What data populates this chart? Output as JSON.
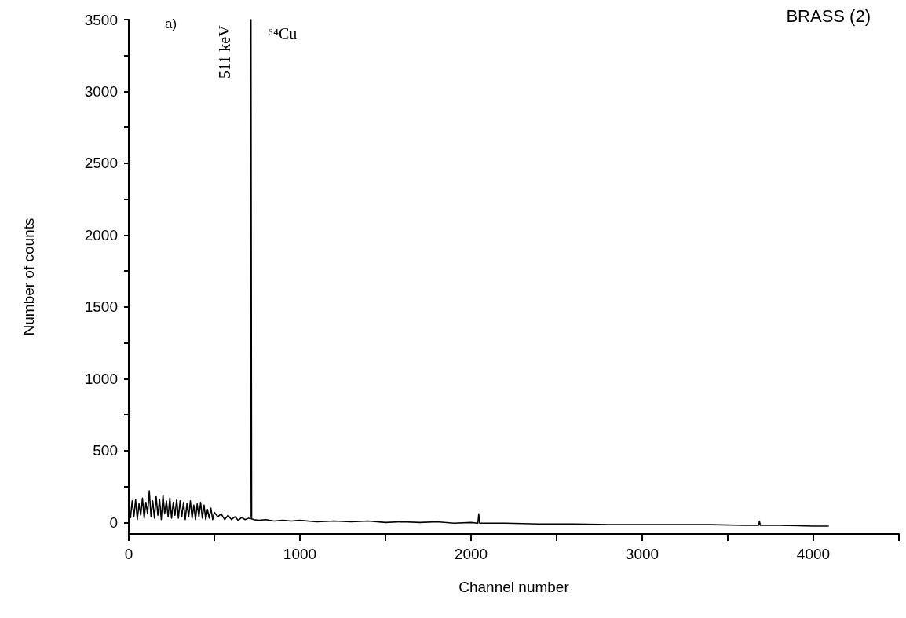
{
  "chart_data": {
    "type": "line",
    "title": "BRASS (2)",
    "xlabel": "Channel number",
    "ylabel": "Number of counts",
    "annotations": [
      "a)",
      {
        "text": "511 keV",
        "x": 714,
        "y": 3100
      },
      {
        "text": "⁶⁴Cu",
        "x": 714,
        "y": 3400
      }
    ],
    "x": [
      10,
      20,
      30,
      40,
      50,
      60,
      70,
      80,
      90,
      100,
      110,
      120,
      130,
      140,
      150,
      160,
      170,
      180,
      190,
      200,
      210,
      220,
      230,
      240,
      250,
      260,
      270,
      280,
      290,
      300,
      310,
      320,
      330,
      340,
      350,
      360,
      370,
      380,
      390,
      400,
      410,
      420,
      430,
      440,
      450,
      460,
      470,
      480,
      490,
      500,
      520,
      540,
      560,
      580,
      600,
      620,
      640,
      660,
      680,
      700,
      710,
      714,
      718,
      730,
      760,
      800,
      850,
      900,
      950,
      1000,
      1100,
      1200,
      1300,
      1400,
      1500,
      1600,
      1700,
      1800,
      1900,
      2000,
      2040,
      2045,
      2050,
      2200,
      2400,
      2600,
      2800,
      3000,
      3200,
      3400,
      3600,
      3680,
      3685,
      3690,
      3800,
      4000,
      4090
    ],
    "series": [
      {
        "color": "#000000",
        "values": [
          30,
          150,
          40,
          160,
          20,
          130,
          50,
          170,
          30,
          140,
          60,
          220,
          40,
          150,
          30,
          180,
          50,
          160,
          20,
          190,
          60,
          150,
          40,
          170,
          30,
          140,
          50,
          160,
          30,
          150,
          40,
          140,
          20,
          130,
          40,
          150,
          30,
          120,
          20,
          130,
          40,
          140,
          30,
          120,
          20,
          90,
          30,
          100,
          20,
          70,
          40,
          60,
          20,
          50,
          20,
          40,
          15,
          35,
          20,
          30,
          25,
          3500,
          25,
          20,
          15,
          20,
          10,
          15,
          10,
          15,
          5,
          10,
          5,
          10,
          0,
          5,
          0,
          5,
          -5,
          0,
          -5,
          60,
          -5,
          -5,
          -10,
          -10,
          -15,
          -15,
          -15,
          -15,
          -20,
          -20,
          10,
          -20,
          -20,
          -25,
          -25
        ]
      }
    ],
    "xlim": [
      0,
      4500
    ],
    "xticks": [
      0,
      {
        "value": 500,
        "label": null
      },
      1000,
      {
        "value": 1500,
        "label": null
      },
      2000,
      {
        "value": 2500,
        "label": null
      },
      3000,
      {
        "value": 3500,
        "label": null
      },
      4000,
      {
        "value": 4500,
        "label": null
      }
    ],
    "ylim": [
      -80,
      3500
    ],
    "yticks": [
      0,
      {
        "value": 250,
        "label": null
      },
      500,
      {
        "value": 750,
        "label": null
      },
      1000,
      {
        "value": 1250,
        "label": null
      },
      1500,
      {
        "value": 1750,
        "label": null
      },
      2000,
      {
        "value": 2250,
        "label": null
      },
      2500,
      {
        "value": 2750,
        "label": null
      },
      3000,
      {
        "value": 3250,
        "label": null
      },
      3500
    ],
    "line_style": "solid"
  }
}
